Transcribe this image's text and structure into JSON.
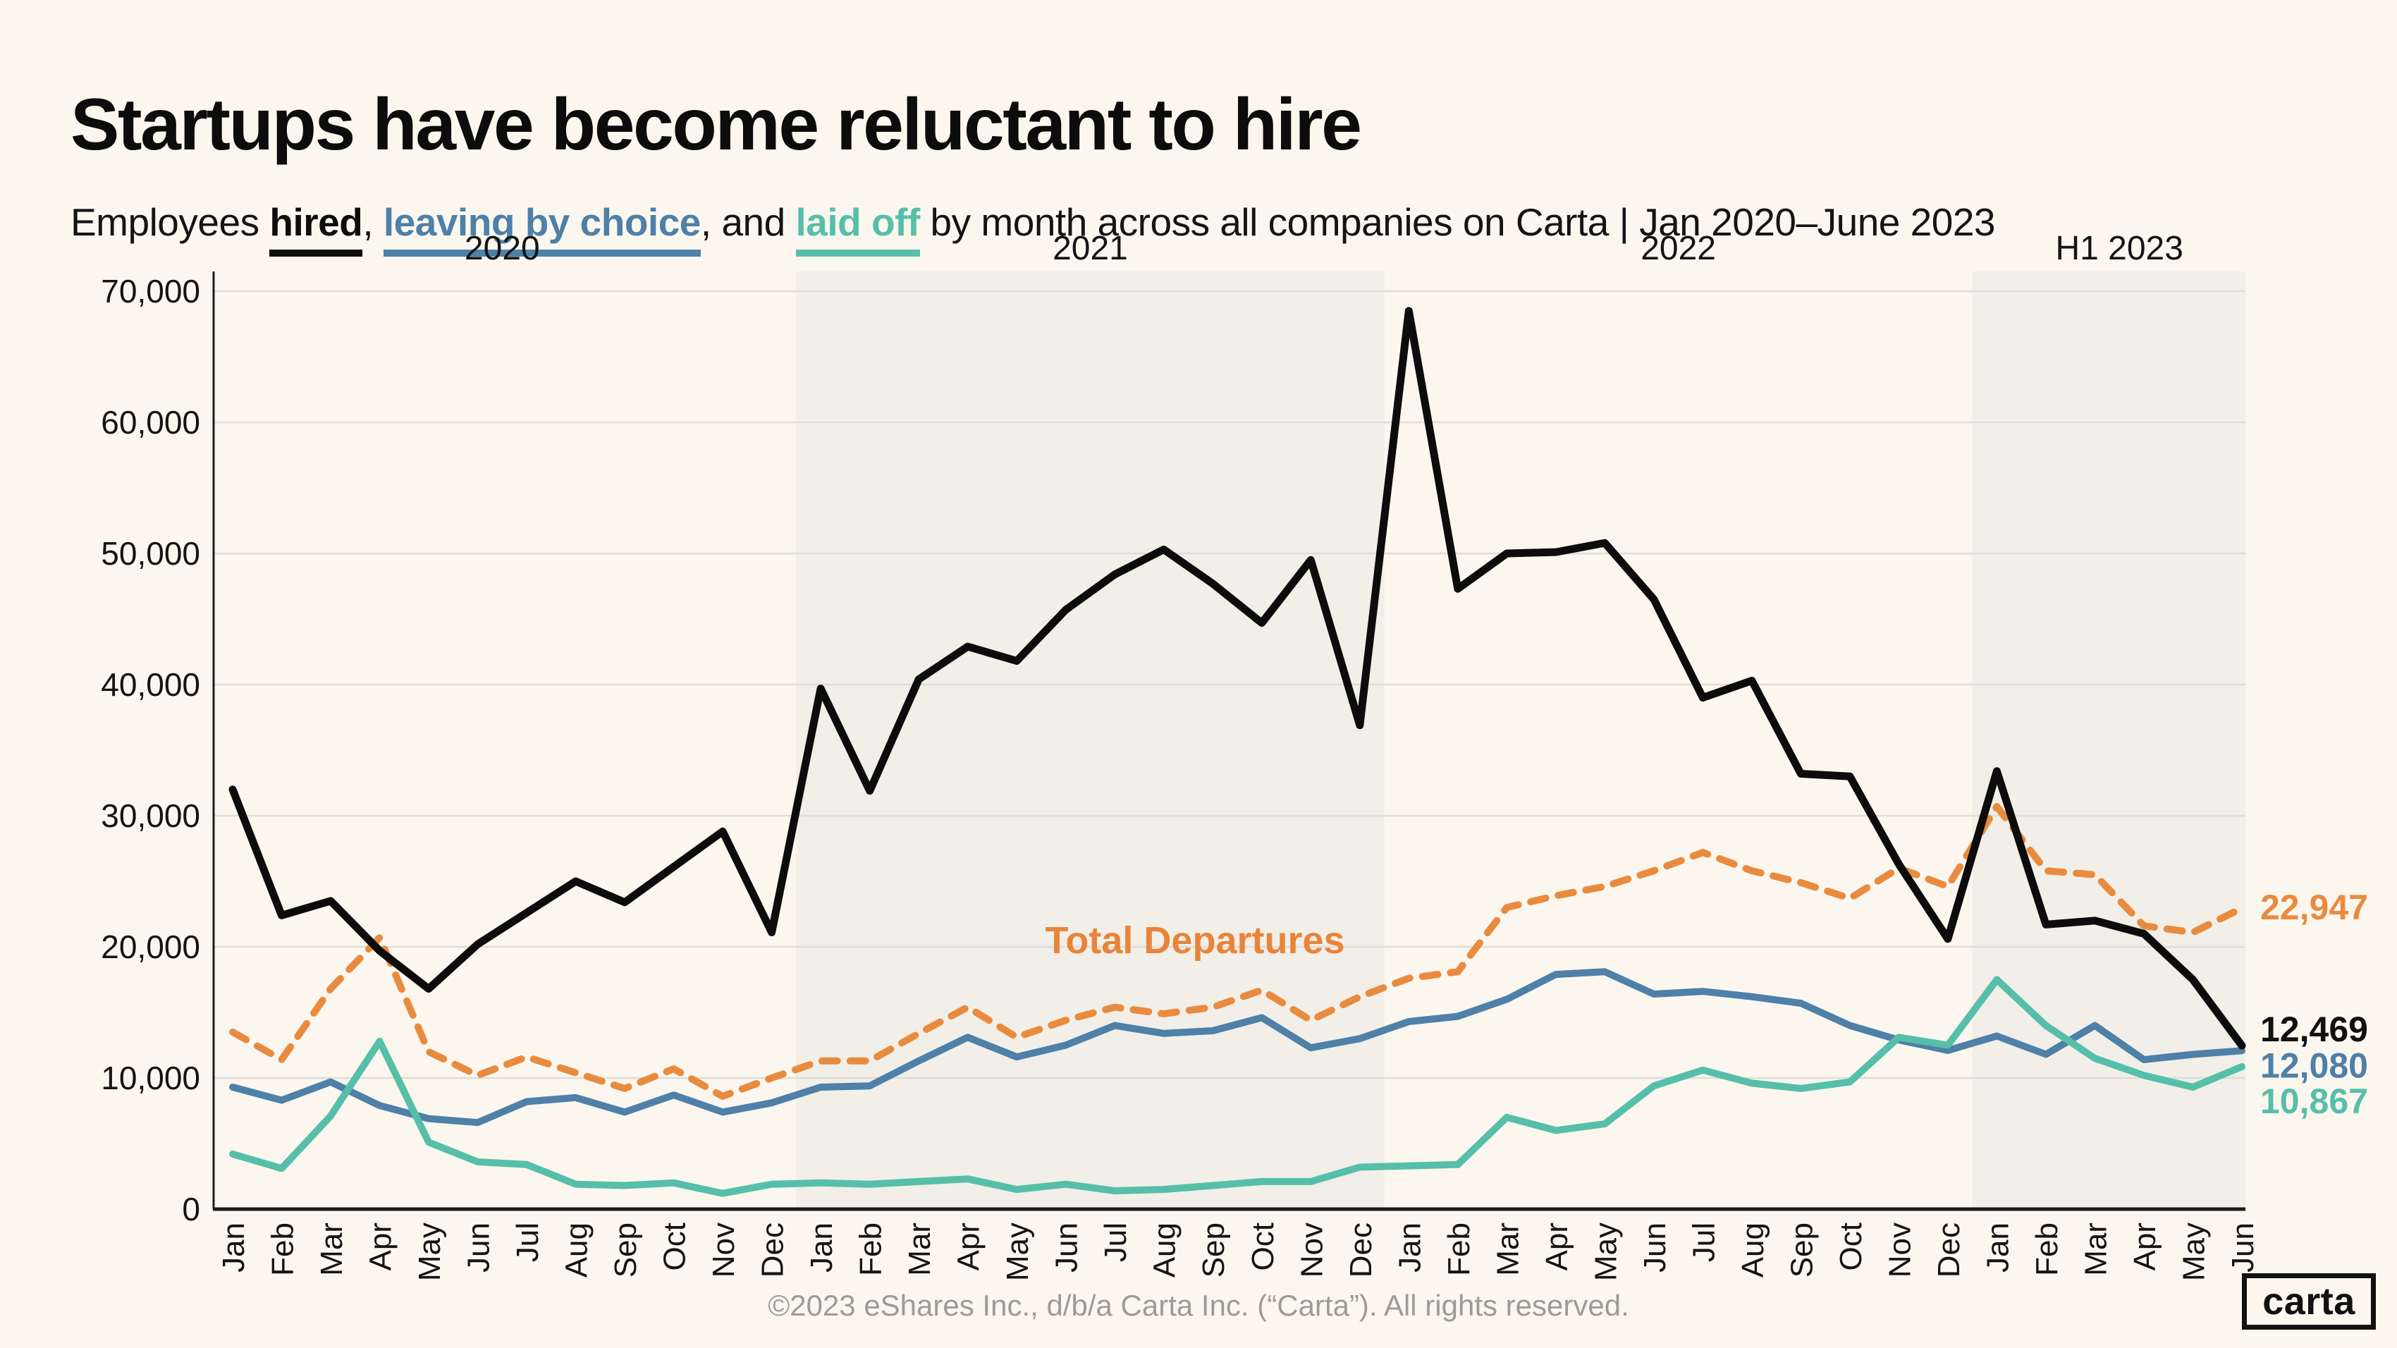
{
  "page": {
    "title": "Startups have become reluctant to hire",
    "subtitle": {
      "prefix": "Employees ",
      "hired": "hired",
      "sep1": ", ",
      "leaving": "leaving by choice",
      "sep2": ", and ",
      "laid_off": "laid off",
      "suffix": " by month across all companies on Carta | Jan 2020–June 2023"
    },
    "footer": "©2023 eShares Inc., d/b/a Carta Inc. (“Carta”). All rights reserved.",
    "logo_text": "carta"
  },
  "chart_data": {
    "type": "line",
    "title": "Startups have become reluctant to hire",
    "xlabel": "",
    "ylabel": "",
    "ylim": [
      0,
      70000
    ],
    "grid": true,
    "y_ticks": [
      "0",
      "10,000",
      "20,000",
      "30,000",
      "40,000",
      "50,000",
      "60,000",
      "70,000"
    ],
    "months": [
      "Jan",
      "Feb",
      "Mar",
      "Apr",
      "May",
      "Jun",
      "Jul",
      "Aug",
      "Sep",
      "Oct",
      "Nov",
      "Dec",
      "Jan",
      "Feb",
      "Mar",
      "Apr",
      "May",
      "Jun",
      "Jul",
      "Aug",
      "Sep",
      "Oct",
      "Nov",
      "Dec",
      "Jan",
      "Feb",
      "Mar",
      "Apr",
      "May",
      "Jun",
      "Jul",
      "Aug",
      "Sep",
      "Oct",
      "Nov",
      "Dec",
      "Jan",
      "Feb",
      "Mar",
      "Apr",
      "May",
      "Jun"
    ],
    "year_groups": [
      {
        "label": "2020",
        "start": 0,
        "end": 11,
        "shaded": false
      },
      {
        "label": "2021",
        "start": 12,
        "end": 23,
        "shaded": true
      },
      {
        "label": "2022",
        "start": 24,
        "end": 35,
        "shaded": false
      },
      {
        "label": "H1 2023",
        "start": 36,
        "end": 41,
        "shaded": true
      }
    ],
    "colors": {
      "background": "#FBF7EF",
      "band": "#F1EFE8",
      "grid": "#DFDDD5",
      "axis": "#1C1C1C",
      "hired": "#0C0C0C",
      "total_departures": "#E98B3F",
      "leaving_by_choice": "#4E80A8",
      "laid_off": "#56BFA9"
    },
    "series": [
      {
        "id": "total-departures",
        "name": "Total Departures",
        "color": "#E98B3F",
        "dashed": true,
        "width": 10,
        "values": [
          13500,
          11400,
          16800,
          20700,
          12000,
          10200,
          11600,
          10400,
          9200,
          10700,
          8600,
          10000,
          11300,
          11300,
          13400,
          15400,
          13100,
          14400,
          15400,
          14900,
          15400,
          16700,
          14400,
          16200,
          17600,
          18100,
          23000,
          23900,
          24600,
          25800,
          27200,
          25800,
          24900,
          23700,
          26000,
          24600,
          30700,
          25800,
          25500,
          21600,
          21100,
          22947
        ]
      },
      {
        "id": "leaving-by-choice",
        "name": "Leaving by choice",
        "color": "#4E80A8",
        "dashed": false,
        "width": 10,
        "values": [
          9300,
          8300,
          9700,
          7900,
          6900,
          6600,
          8200,
          8500,
          7400,
          8700,
          7400,
          8100,
          9300,
          9400,
          11300,
          13100,
          11600,
          12500,
          14000,
          13400,
          13600,
          14600,
          12300,
          13000,
          14300,
          14700,
          16000,
          17900,
          18100,
          16400,
          16600,
          16200,
          15700,
          14000,
          12900,
          12100,
          13200,
          11800,
          14000,
          11400,
          11800,
          12080
        ]
      },
      {
        "id": "laid-off",
        "name": "Laid off",
        "color": "#56BFA9",
        "dashed": false,
        "width": 10,
        "values": [
          4200,
          3100,
          7100,
          12800,
          5100,
          3600,
          3400,
          1900,
          1800,
          2000,
          1200,
          1900,
          2000,
          1900,
          2100,
          2300,
          1500,
          1900,
          1400,
          1500,
          1800,
          2100,
          2100,
          3200,
          3300,
          3400,
          7000,
          6000,
          6500,
          9400,
          10600,
          9600,
          9200,
          9700,
          13100,
          12500,
          17500,
          14000,
          11500,
          10200,
          9300,
          10867
        ]
      },
      {
        "id": "hired",
        "name": "Hired",
        "color": "#0C0C0C",
        "dashed": false,
        "width": 11,
        "values": [
          32000,
          22400,
          23500,
          19700,
          16800,
          20200,
          22600,
          25000,
          23400,
          26100,
          28800,
          21100,
          39700,
          31900,
          40400,
          42900,
          41800,
          45700,
          48400,
          50300,
          47700,
          44700,
          49500,
          36900,
          68500,
          47300,
          50000,
          50100,
          50800,
          46500,
          39000,
          40300,
          33200,
          33000,
          26300,
          20600,
          33400,
          21700,
          22000,
          21000,
          17500,
          12469
        ]
      }
    ],
    "annotation": {
      "text": "Total Departures",
      "color": "#E8843B",
      "x": 1695,
      "y": 1352
    },
    "end_labels": [
      {
        "id": "total-departures",
        "text": "22,947",
        "value": 22947,
        "dy": 16,
        "color": "#E98B3F"
      },
      {
        "id": "hired",
        "text": "12,469",
        "value": 12469,
        "dy": -6,
        "color": "#111111"
      },
      {
        "id": "leaving-by-choice",
        "text": "12,080",
        "value": 12080,
        "dy": 38,
        "color": "#4E80A8"
      },
      {
        "id": "laid-off",
        "text": "10,867",
        "value": 10867,
        "dy": 66,
        "color": "#56BFA9"
      }
    ],
    "legend_position": "in-subtitle"
  }
}
